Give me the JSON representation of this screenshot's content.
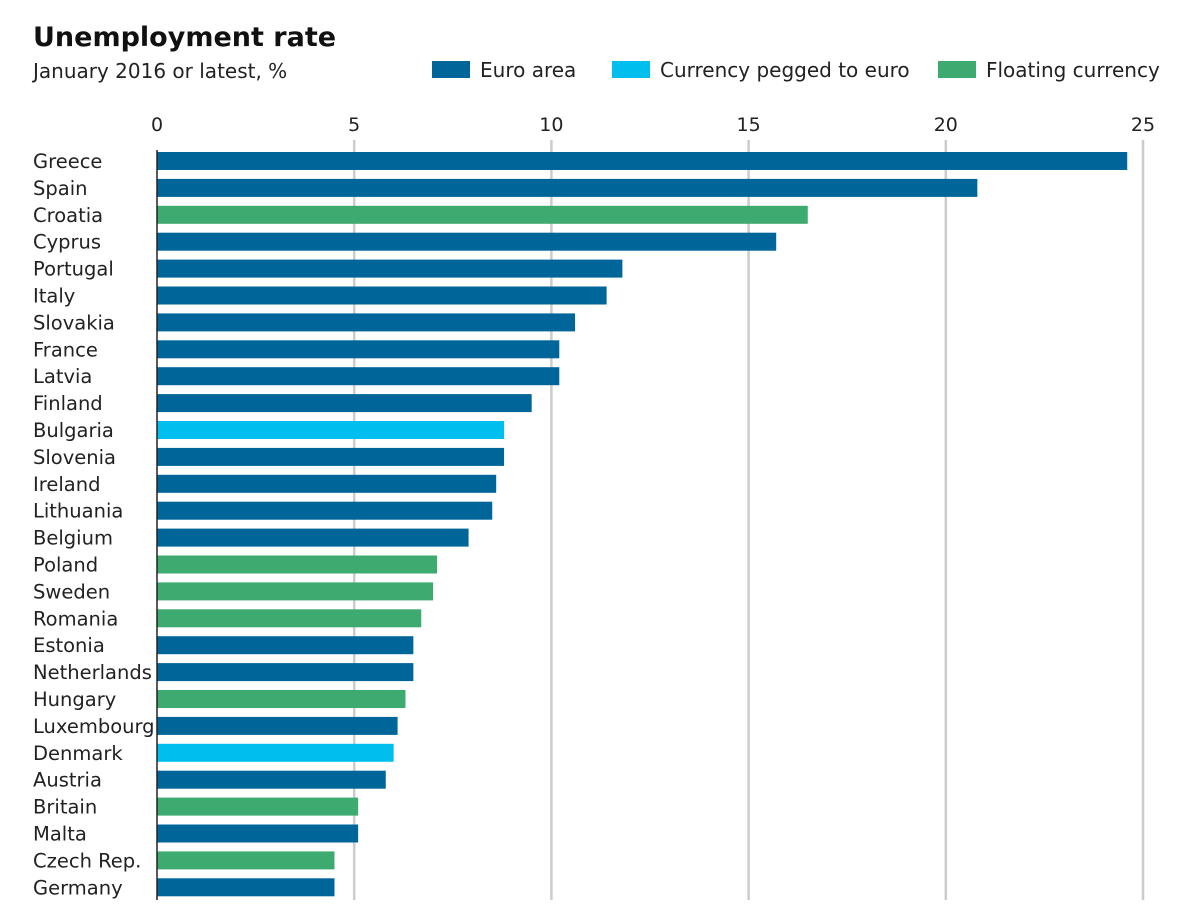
{
  "chart_data": {
    "type": "bar",
    "orientation": "horizontal",
    "title": "Unemployment rate",
    "subtitle": "January 2016 or latest, %",
    "xlabel": "",
    "ylabel": "",
    "xlim": [
      0,
      25
    ],
    "xticks": [
      0,
      5,
      10,
      15,
      20,
      25
    ],
    "grid": true,
    "legend_position": "top-right",
    "legend": [
      {
        "key": "euro",
        "label": "Euro area",
        "color": "#006699"
      },
      {
        "key": "pegged",
        "label": "Currency pegged to euro",
        "color": "#00BFEF"
      },
      {
        "key": "floating",
        "label": "Floating currency",
        "color": "#3DAA6F"
      }
    ],
    "categories": [
      "Greece",
      "Spain",
      "Croatia",
      "Cyprus",
      "Portugal",
      "Italy",
      "Slovakia",
      "France",
      "Latvia",
      "Finland",
      "Bulgaria",
      "Slovenia",
      "Ireland",
      "Lithuania",
      "Belgium",
      "Poland",
      "Sweden",
      "Romania",
      "Estonia",
      "Netherlands",
      "Hungary",
      "Luxembourg",
      "Denmark",
      "Austria",
      "Britain",
      "Malta",
      "Czech Rep.",
      "Germany"
    ],
    "values": [
      24.6,
      20.8,
      16.5,
      15.7,
      11.8,
      11.4,
      10.6,
      10.2,
      10.2,
      9.5,
      8.8,
      8.8,
      8.6,
      8.5,
      7.9,
      7.1,
      7.0,
      6.7,
      6.5,
      6.5,
      6.3,
      6.1,
      6.0,
      5.8,
      5.1,
      5.1,
      4.5,
      4.5
    ],
    "groups": [
      "euro",
      "euro",
      "floating",
      "euro",
      "euro",
      "euro",
      "euro",
      "euro",
      "euro",
      "euro",
      "pegged",
      "euro",
      "euro",
      "euro",
      "euro",
      "floating",
      "floating",
      "floating",
      "euro",
      "euro",
      "floating",
      "euro",
      "pegged",
      "euro",
      "floating",
      "euro",
      "floating",
      "euro"
    ]
  }
}
